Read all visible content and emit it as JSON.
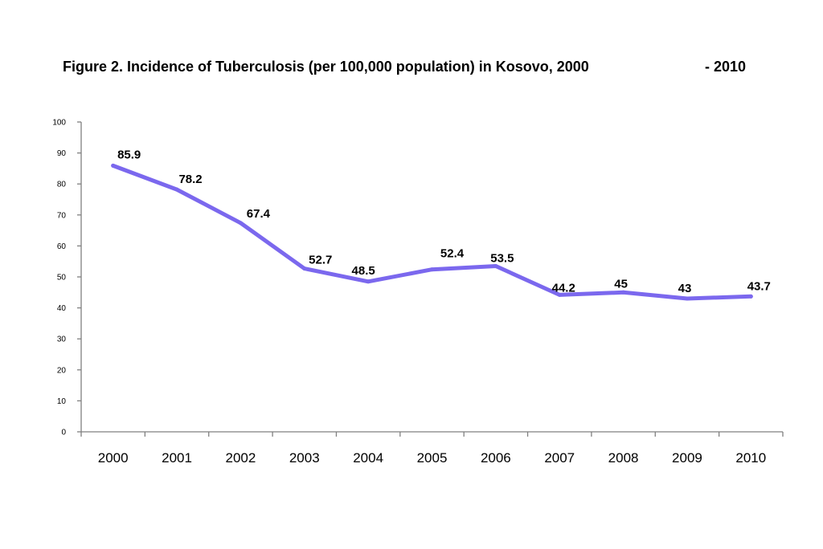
{
  "title": {
    "main": "Figure   2.  Incidence of Tuberculosis (per 100,000 population) in Kosovo, 2000",
    "end": "- 2010"
  },
  "colors": {
    "line": "#7B68EE",
    "axis": "#808080"
  },
  "chart_data": {
    "type": "line",
    "title": "Figure 2. Incidence of Tuberculosis (per 100,000 population) in Kosovo, 2000 - 2010",
    "categories": [
      "2000",
      "2001",
      "2002",
      "2003",
      "2004",
      "2005",
      "2006",
      "2007",
      "2008",
      "2009",
      "2010"
    ],
    "values": [
      85.9,
      78.2,
      67.4,
      52.7,
      48.5,
      52.4,
      53.5,
      44.2,
      45,
      43,
      43.7
    ],
    "data_labels": [
      "85.9",
      "78.2",
      "67.4",
      "52.7",
      "48.5",
      "52.4",
      "53.5",
      "44.2",
      "45",
      "43",
      "43.7"
    ],
    "ylim": [
      0,
      100
    ],
    "yticks": [
      "0",
      "10",
      "20",
      "30",
      "40",
      "50",
      "60",
      "70",
      "80",
      "90",
      "100"
    ],
    "xlabel": "",
    "ylabel": "",
    "grid": false,
    "legend": "none"
  }
}
